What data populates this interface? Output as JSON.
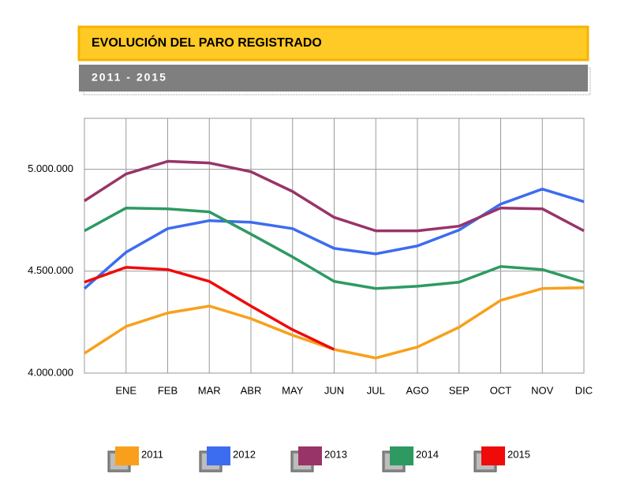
{
  "chart_data": {
    "type": "line",
    "title": "EVOLUCIÓN DEL PARO REGISTRADO",
    "subtitle": "2011 - 2015",
    "categories": [
      null,
      "ENE",
      "FEB",
      "MAR",
      "ABR",
      "MAY",
      "JUN",
      "JUL",
      "AGO",
      "SEP",
      "OCT",
      "NOV",
      "DIC"
    ],
    "ylim": [
      4000000,
      5250000
    ],
    "yticks": [
      {
        "value": 4000000,
        "label": "4.000.000"
      },
      {
        "value": 4500000,
        "label": "4.500.000"
      },
      {
        "value": 5000000,
        "label": "5.000.000"
      }
    ],
    "grid": true,
    "series": [
      {
        "name": "2011",
        "color": "#f8a01c",
        "values": [
          4097000,
          4229000,
          4295000,
          4329000,
          4267000,
          4186000,
          4116000,
          4074000,
          4128000,
          4225000,
          4357000,
          4415000,
          4419000
        ]
      },
      {
        "name": "2012",
        "color": "#3c6cf0",
        "values": [
          4415000,
          4593000,
          4709000,
          4748000,
          4740000,
          4709000,
          4612000,
          4585000,
          4624000,
          4702000,
          4829000,
          4903000,
          4841000
        ]
      },
      {
        "name": "2013",
        "color": "#983468",
        "values": [
          4845000,
          4977000,
          5039000,
          5031000,
          4988000,
          4891000,
          4764000,
          4698000,
          4698000,
          4721000,
          4810000,
          4806000,
          4698000
        ]
      },
      {
        "name": "2014",
        "color": "#2e9a62",
        "values": [
          4698000,
          4810000,
          4806000,
          4791000,
          4682000,
          4570000,
          4450000,
          4415000,
          4426000,
          4446000,
          4523000,
          4508000,
          4446000
        ]
      },
      {
        "name": "2015",
        "color": "#f00a0a",
        "values": [
          4446000,
          4519000,
          4508000,
          4450000,
          4329000,
          4213000,
          4116000,
          null,
          null,
          null,
          null,
          null,
          null
        ]
      }
    ]
  }
}
